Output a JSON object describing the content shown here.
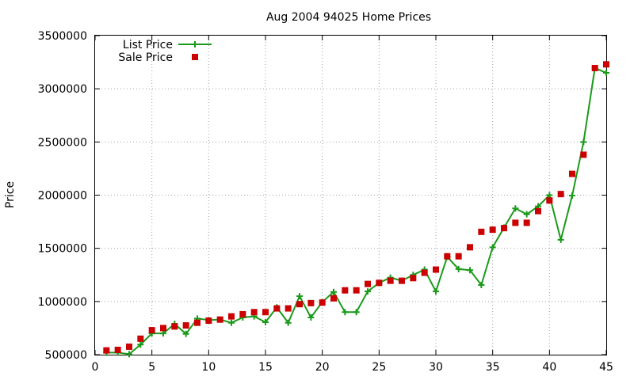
{
  "chart_data": {
    "type": "line",
    "title": "Aug 2004 94025 Home Prices",
    "xlabel": "",
    "ylabel": "Price",
    "xlim": [
      0,
      45
    ],
    "ylim": [
      500000,
      3500000
    ],
    "xticks": [
      0,
      5,
      10,
      15,
      20,
      25,
      30,
      35,
      40,
      45
    ],
    "yticks": [
      500000,
      1000000,
      1500000,
      2000000,
      2500000,
      3000000,
      3500000
    ],
    "xtick_labels": [
      "0",
      "5",
      "10",
      "15",
      "20",
      "25",
      "30",
      "35",
      "40",
      "45"
    ],
    "ytick_labels": [
      "500000",
      "1000000",
      "1500000",
      "2000000",
      "2500000",
      "3000000",
      "3500000"
    ],
    "grid": true,
    "legend_position": "top-left",
    "series": [
      {
        "name": "List Price",
        "style": "linespoints",
        "marker": "plus",
        "color": "#1a9a1a",
        "x": [
          1,
          2,
          3,
          4,
          5,
          6,
          7,
          8,
          9,
          10,
          11,
          12,
          13,
          14,
          15,
          16,
          17,
          18,
          19,
          20,
          21,
          22,
          23,
          24,
          25,
          26,
          27,
          28,
          29,
          30,
          31,
          32,
          33,
          34,
          35,
          36,
          37,
          38,
          39,
          40,
          41,
          42,
          43,
          44,
          45
        ],
        "y": [
          520000,
          520000,
          505000,
          595000,
          700000,
          700000,
          790000,
          695000,
          840000,
          825000,
          830000,
          800000,
          850000,
          860000,
          805000,
          945000,
          800000,
          1050000,
          850000,
          995000,
          1090000,
          900000,
          900000,
          1095000,
          1175000,
          1225000,
          1195000,
          1250000,
          1300000,
          1095000,
          1420000,
          1305000,
          1295000,
          1155000,
          1510000,
          1695000,
          1875000,
          1820000,
          1895000,
          2000000,
          1580000,
          1995000,
          2500000,
          3195000,
          3150000
        ]
      },
      {
        "name": "Sale Price",
        "style": "points",
        "marker": "square",
        "color": "#cc0000",
        "x": [
          1,
          2,
          3,
          4,
          5,
          6,
          7,
          8,
          9,
          10,
          11,
          12,
          13,
          14,
          15,
          16,
          17,
          18,
          19,
          20,
          21,
          22,
          23,
          24,
          25,
          26,
          27,
          28,
          29,
          30,
          31,
          32,
          33,
          34,
          35,
          36,
          37,
          38,
          39,
          40,
          41,
          42,
          43,
          44,
          45
        ],
        "y": [
          540000,
          545000,
          575000,
          650000,
          730000,
          750000,
          765000,
          775000,
          800000,
          820000,
          830000,
          860000,
          880000,
          900000,
          900000,
          935000,
          935000,
          975000,
          985000,
          990000,
          1030000,
          1105000,
          1105000,
          1165000,
          1175000,
          1195000,
          1195000,
          1220000,
          1270000,
          1300000,
          1425000,
          1425000,
          1510000,
          1655000,
          1675000,
          1690000,
          1740000,
          1740000,
          1850000,
          1950000,
          2010000,
          2200000,
          2380000,
          3195000,
          3230000
        ]
      }
    ]
  }
}
